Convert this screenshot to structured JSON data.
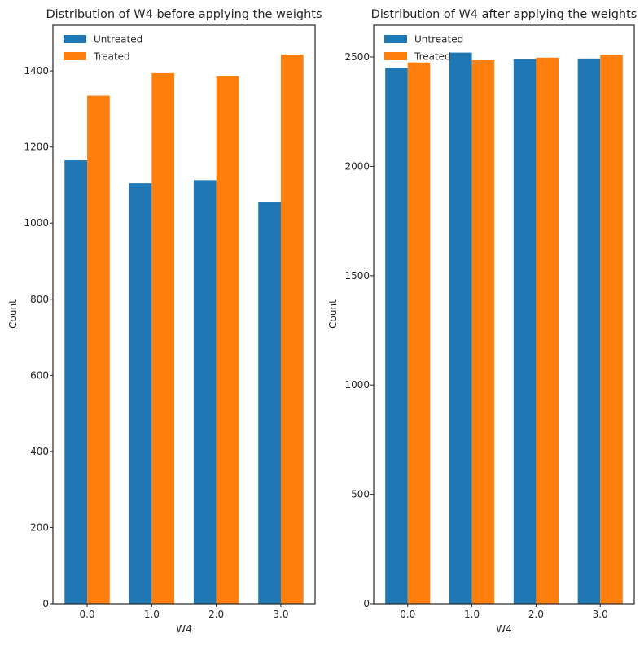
{
  "chart_data": [
    {
      "type": "bar",
      "title": "Distribution of W4 before applying the weights",
      "xlabel": "W4",
      "ylabel": "Count",
      "categories": [
        "0.0",
        "1.0",
        "2.0",
        "3.0"
      ],
      "ylim": [
        0,
        1520
      ],
      "yticks": [
        0,
        200,
        400,
        600,
        800,
        1000,
        1200,
        1400
      ],
      "legend_position": "top-left",
      "grid": false,
      "series": [
        {
          "name": "Untreated",
          "color": "#1f77b4",
          "values": [
            1165,
            1105,
            1113,
            1056
          ]
        },
        {
          "name": "Treated",
          "color": "#ff7f0e",
          "values": [
            1335,
            1394,
            1386,
            1443
          ]
        }
      ]
    },
    {
      "type": "bar",
      "title": "Distribution of W4 after applying the weights",
      "xlabel": "W4",
      "ylabel": "Count",
      "categories": [
        "0.0",
        "1.0",
        "2.0",
        "3.0"
      ],
      "ylim": [
        0,
        2645
      ],
      "yticks": [
        0,
        500,
        1000,
        1500,
        2000,
        2500
      ],
      "legend_position": "top-left",
      "grid": false,
      "series": [
        {
          "name": "Untreated",
          "color": "#1f77b4",
          "values": [
            2450,
            2520,
            2490,
            2493
          ]
        },
        {
          "name": "Treated",
          "color": "#ff7f0e",
          "values": [
            2475,
            2485,
            2497,
            2510
          ]
        }
      ]
    }
  ]
}
